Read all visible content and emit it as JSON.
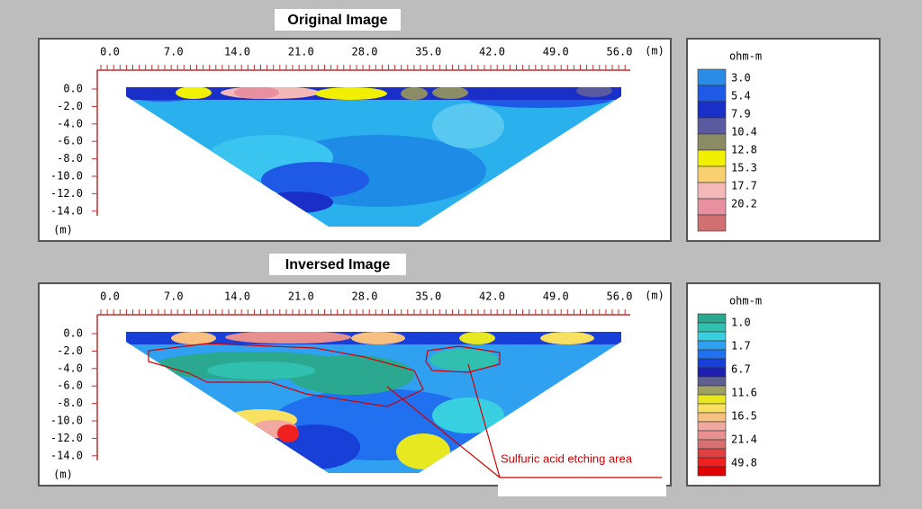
{
  "panels": [
    {
      "title": "Original Image",
      "x_ticks": [
        "0.0",
        "7.0",
        "14.0",
        "21.0",
        "28.0",
        "35.0",
        "42.0",
        "49.0",
        "56.0"
      ],
      "x_unit": "(m)",
      "y_ticks": [
        "0.0",
        "-2.0",
        "-4.0",
        "-6.0",
        "-8.0",
        "-10.0",
        "-12.0",
        "-14.0"
      ],
      "y_unit": "(m)",
      "legend": {
        "unit": "ohm-m",
        "labels": [
          "3.0",
          "5.4",
          "7.9",
          "10.4",
          "12.8",
          "15.3",
          "17.7",
          "20.2"
        ]
      }
    },
    {
      "title": "Inversed Image",
      "x_ticks": [
        "0.0",
        "7.0",
        "14.0",
        "21.0",
        "28.0",
        "35.0",
        "42.0",
        "49.0",
        "56.0"
      ],
      "x_unit": "(m)",
      "y_ticks": [
        "0.0",
        "-2.0",
        "-4.0",
        "-6.0",
        "-8.0",
        "-10.0",
        "-12.0",
        "-14.0"
      ],
      "y_unit": "(m)",
      "legend": {
        "unit": "ohm-m",
        "labels": [
          "1.0",
          "1.7",
          "6.7",
          "11.6",
          "16.5",
          "21.4",
          "49.8"
        ]
      },
      "annotation": "Sulfuric acid etching area"
    }
  ]
}
